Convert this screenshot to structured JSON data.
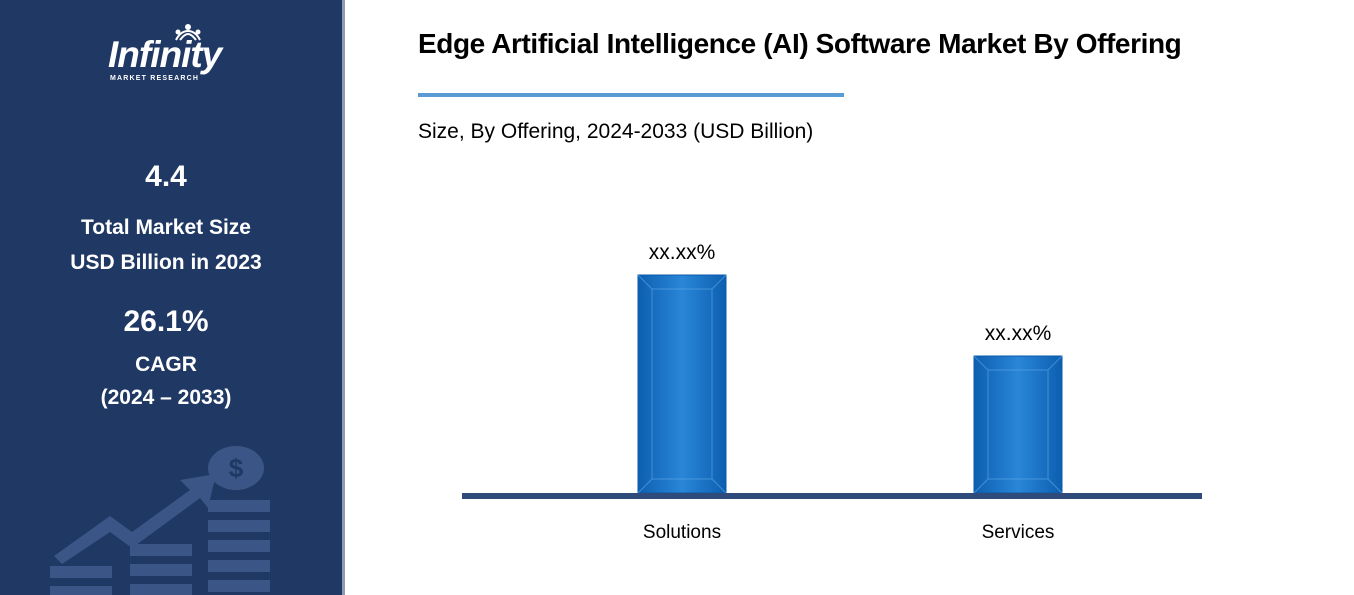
{
  "brand": {
    "name": "Infinity",
    "tagline": "MARKET RESEARCH"
  },
  "sidebar": {
    "market_size_value": "4.4",
    "market_size_label_line1": "Total Market Size",
    "market_size_label_line2": "USD Billion in 2023",
    "cagr_value": "26.1%",
    "cagr_label": "CAGR",
    "cagr_period": "(2024 – 2033)",
    "decor_icon": "dollar-growth-icon"
  },
  "colors": {
    "sidebar_bg": "#1f3864",
    "bar": "#1f73c7",
    "bar_edge": "#0b5aa8",
    "baseline": "#2f4b7c",
    "accent_rule": "#5b9bd5"
  },
  "chart_data": {
    "type": "bar",
    "title": "Edge Artificial Intelligence (AI) Software Market By Offering",
    "subtitle": "Size, By Offering, 2024-2033 (USD Billion)",
    "categories": [
      "Solutions",
      "Services"
    ],
    "values": [
      218,
      137
    ],
    "data_labels": [
      "xx.xx%",
      "xx.xx%"
    ],
    "ylim": [
      0,
      240
    ],
    "grid": false,
    "legend": "none",
    "xlabel": "",
    "ylabel": ""
  }
}
